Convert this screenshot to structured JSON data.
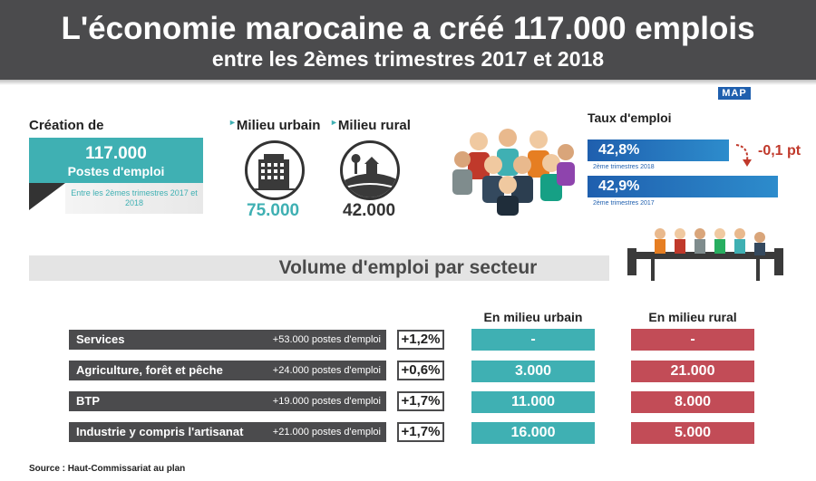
{
  "header": {
    "title": "L'économie marocaine a créé 117.000 emplois",
    "subtitle": "entre les 2èmes trimestres 2017 et 2018"
  },
  "logo": {
    "text": "MAP"
  },
  "creation": {
    "title": "Création de",
    "value": "117.000",
    "label": "Postes d'emploi",
    "period": "Entre les 2èmes trimestres 2017 et 2018"
  },
  "milieu": {
    "urbain": {
      "title": "Milieu urbain",
      "value": "75.000"
    },
    "rural": {
      "title": "Milieu rural",
      "value": "42.000"
    }
  },
  "taux": {
    "title": "Taux d'emploi",
    "rows": [
      {
        "value": "42,8%",
        "label": "2ème trimestres 2018"
      },
      {
        "value": "42,9%",
        "label": "2ème trimestres 2017"
      }
    ],
    "delta": "-0,1 pt"
  },
  "volume": {
    "title": "Volume d'emploi par secteur",
    "col_urbain": "En milieu urbain",
    "col_rural": "En milieu rural",
    "rows": [
      {
        "name": "Services",
        "postes": "+53.000 postes d'emploi",
        "pct": "+1,2%",
        "urbain": "-",
        "rural": "-"
      },
      {
        "name": "Agriculture, forêt et pêche",
        "postes": "+24.000 postes d'emploi",
        "pct": "+0,6%",
        "urbain": "3.000",
        "rural": "21.000"
      },
      {
        "name": "BTP",
        "postes": "+19.000  postes d'emploi",
        "pct": "+1,7%",
        "urbain": "11.000",
        "rural": "8.000"
      },
      {
        "name": "Industrie y compris l'artisanat",
        "postes": "+21.000  postes d'emploi",
        "pct": "+1,7%",
        "urbain": "16.000",
        "rural": "5.000"
      }
    ]
  },
  "source": "Source : Haut-Commissariat au plan",
  "colors": {
    "teal": "#3fb0b3",
    "red": "#c24c57",
    "blue": "#1f5fae",
    "dark": "#4b4b4d"
  }
}
